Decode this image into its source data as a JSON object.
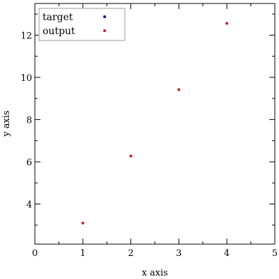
{
  "chart_data": {
    "type": "scatter",
    "title": "",
    "xlabel": "x axis",
    "ylabel": "y axis",
    "xlim": [
      0,
      5
    ],
    "ylim": [
      2.1,
      13.5
    ],
    "x_ticks": [
      0,
      1,
      2,
      3,
      4,
      5
    ],
    "y_ticks": [
      4,
      6,
      8,
      10,
      12
    ],
    "x_tick_labels": [
      "0",
      "1",
      "2",
      "3",
      "4",
      "5"
    ],
    "y_tick_labels": [
      "4",
      "6",
      "8",
      "10",
      "12"
    ],
    "grid": false,
    "legend": {
      "placement": "top-left",
      "entries": [
        {
          "name": "target",
          "color": "#0000cc"
        },
        {
          "name": "output",
          "color": "#dd1122"
        }
      ]
    },
    "series": [
      {
        "name": "target",
        "color": "#0000cc",
        "x": [],
        "y": []
      },
      {
        "name": "output",
        "color": "#dd1122",
        "x": [
          1,
          2,
          3,
          4
        ],
        "y": [
          3.1,
          6.27,
          9.42,
          12.56
        ]
      }
    ]
  }
}
